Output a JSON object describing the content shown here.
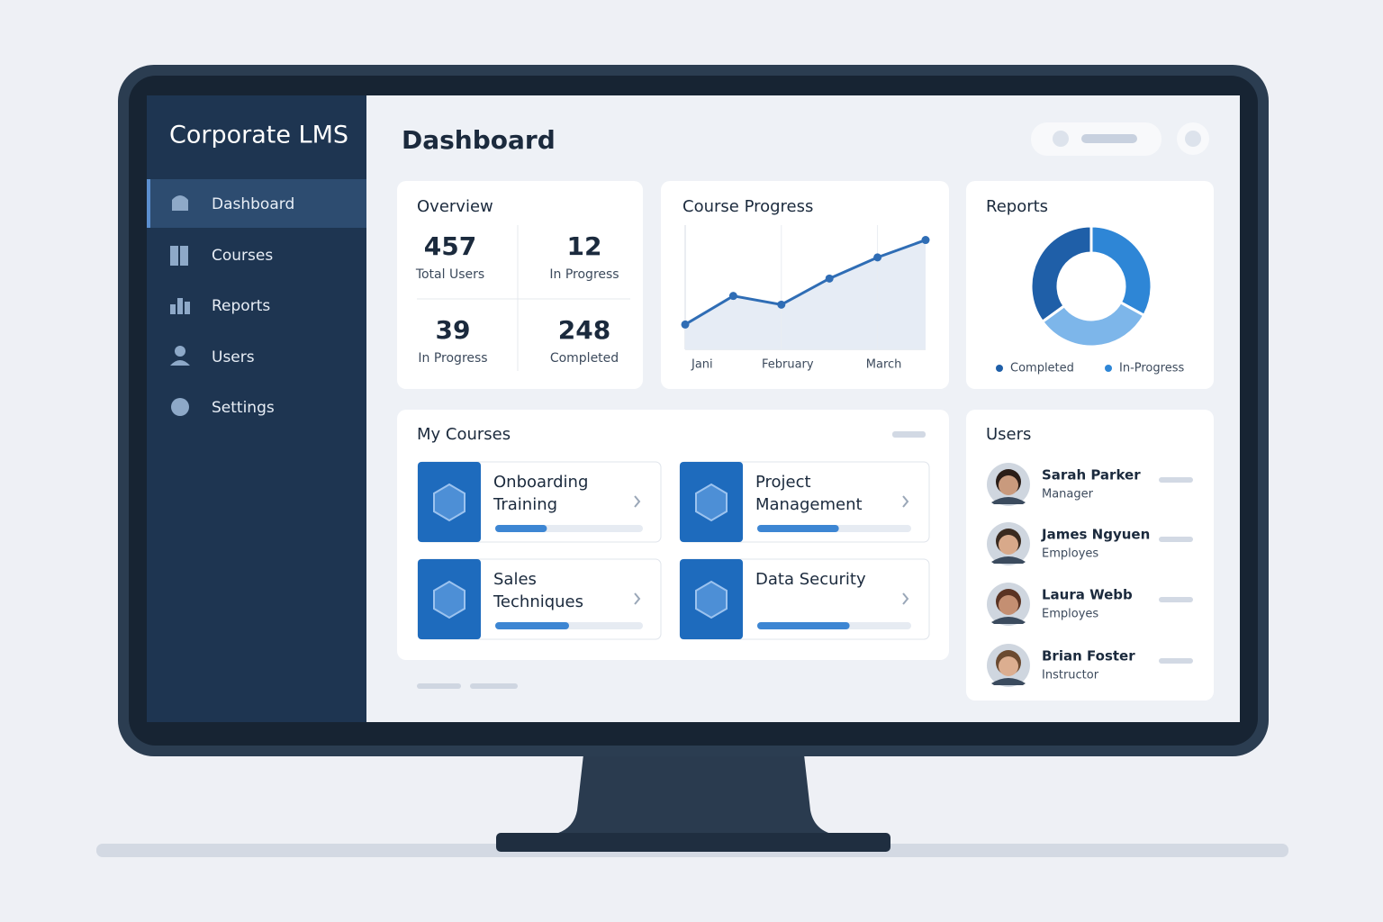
{
  "sidebar": {
    "brand": "Corporate LMS",
    "nav": [
      "Dashboard",
      "Courses",
      "Reports",
      "Users",
      "Settings"
    ]
  },
  "header": {
    "title": "Dashboard"
  },
  "overview": {
    "title": "Overview",
    "stats": [
      {
        "value": 457,
        "label": "Total Users"
      },
      {
        "value": 12,
        "label": "In Progress"
      },
      {
        "value": 39,
        "label": "In Progress"
      },
      {
        "value": 248,
        "label": "Completed"
      }
    ]
  },
  "chart_data": [
    {
      "type": "line",
      "title": "Course Progress",
      "categories": [
        "Jani",
        null,
        "February",
        null,
        "March",
        null
      ],
      "values": [
        20,
        43,
        36,
        57,
        74,
        88
      ],
      "color": "#2f6db5",
      "ylim": [
        0,
        100
      ]
    },
    {
      "type": "pie",
      "title": "Reports",
      "categories": [
        "Completed",
        "In-Progress",
        null
      ],
      "values": [
        35,
        33,
        32
      ],
      "colors": [
        "#1f5fa8",
        "#2e86d6",
        "#7db6ea"
      ],
      "donut": true
    }
  ],
  "courses": {
    "title": "My Courses",
    "items": [
      {
        "name": [
          "Onboarding",
          "Training"
        ],
        "progress": 35
      },
      {
        "name": [
          "Project",
          "Management"
        ],
        "progress": 53
      },
      {
        "name": [
          "Sales",
          "Techniques"
        ],
        "progress": 50
      },
      {
        "name": [
          "Data Security"
        ],
        "progress": 60
      }
    ]
  },
  "users": {
    "title": "Users",
    "items": [
      {
        "name": "Sarah Parker",
        "role": "Manager"
      },
      {
        "name": "James Ngyuen",
        "role": "Employes"
      },
      {
        "name": "Laura Webb",
        "role": "Employes"
      },
      {
        "name": "Brian Foster",
        "role": "Instructor"
      }
    ]
  }
}
